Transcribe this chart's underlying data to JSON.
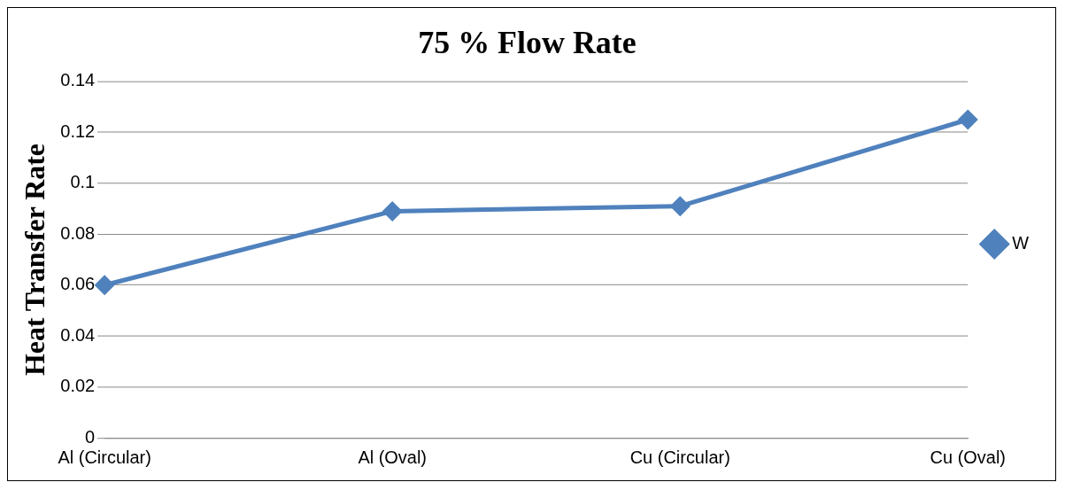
{
  "chart_data": {
    "type": "line",
    "title": "75 % Flow Rate",
    "ylabel": "Heat Transfer Rate",
    "categories": [
      "Al (Circular)",
      "Al (Oval)",
      "Cu (Circular)",
      "Cu (Oval)"
    ],
    "series": [
      {
        "name": "W",
        "color": "#4f81bd",
        "values": [
          0.06,
          0.089,
          0.091,
          0.125
        ]
      }
    ],
    "ylim": [
      0,
      0.14
    ],
    "yticks": [
      0,
      0.02,
      0.04,
      0.06,
      0.08,
      0.1,
      0.12,
      0.14
    ],
    "grid": "y",
    "legend": "right",
    "marker": "diamond",
    "line_style": "solid"
  }
}
